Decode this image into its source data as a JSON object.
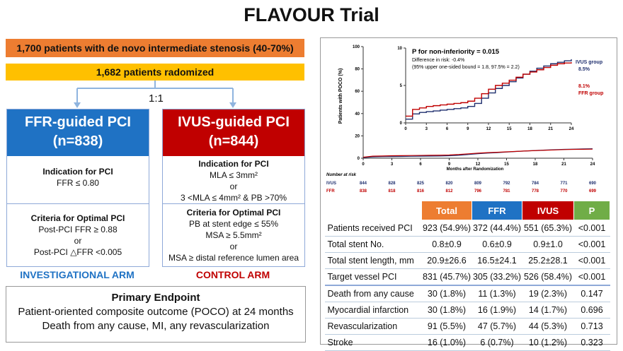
{
  "title": "FLAVOUR Trial",
  "enrolled": "1,700 patients with de novo intermediate stenosis (40-70%)",
  "randomized": "1,682 patients radomized",
  "ratio": "1:1",
  "colors": {
    "orange": "#ED7D31",
    "yellow": "#FFC000",
    "ffr_blue": "#1F72C4",
    "ivus_red": "#C00000",
    "green": "#70AD47",
    "navy": "#1F2F6E"
  },
  "ffr_arm": {
    "title_line1": "FFR-guided PCI",
    "title_line2": "(n=838)",
    "indication_head": "Indication for PCI",
    "indication_line1": "FFR ≤ 0.80",
    "optimal_head": "Criteria for Optimal PCI",
    "optimal_line1": "Post-PCI FFR ≥ 0.88",
    "optimal_line2": "or",
    "optimal_line3": "Post-PCI △FFR <0.005",
    "label": "INVESTIGATIONAL ARM"
  },
  "ivus_arm": {
    "title_line1": "IVUS-guided PCI",
    "title_line2": "(n=844)",
    "indication_head": "Indication for PCI",
    "indication_line1": "MLA ≤ 3mm²",
    "indication_line2": "or",
    "indication_line3": "3 <MLA ≤ 4mm² & PB >70%",
    "optimal_head": "Criteria for Optimal PCI",
    "optimal_line1": "PB at stent edge ≤ 55%",
    "optimal_line2": "MSA ≥ 5.5mm²",
    "optimal_line3": "or",
    "optimal_line4": "MSA ≥ distal reference lumen area",
    "label": "CONTROL ARM"
  },
  "endpoint": {
    "head": "Primary Endpoint",
    "line1": "Patient-oriented composite outcome (POCO) at 24 months",
    "line2": "Death from any cause, MI, any revascularization"
  },
  "chart_data": {
    "type": "line",
    "ylabel": "Patients with POCO (%)",
    "xlabel": "Months after Randomization",
    "ylim": [
      0,
      100
    ],
    "xlim": [
      0,
      24
    ],
    "yticks": [
      "0",
      "20",
      "40",
      "60",
      "80",
      "100"
    ],
    "xticks": [
      "0",
      "3",
      "6",
      "9",
      "12",
      "15",
      "18",
      "21",
      "24"
    ],
    "inset": {
      "ylim": [
        0,
        10
      ],
      "xlim": [
        0,
        24
      ],
      "yticks": [
        "0",
        "5",
        "10"
      ],
      "xticks": [
        "0",
        "3",
        "6",
        "9",
        "12",
        "15",
        "18",
        "21",
        "24"
      ],
      "annotation_head": "P for non-inferiority = 0.015",
      "annotation_line1": "Difference in risk: -0.4%",
      "annotation_line2": "(95% upper one-sided bound = 1.8, 97.5% = 2.2)",
      "ivus_label": "IVUS group",
      "ivus_value": "8.5%",
      "ffr_value": "8.1%",
      "ffr_label": "FFR group"
    },
    "x": [
      0,
      1,
      2,
      3,
      4,
      5,
      6,
      7,
      8,
      9,
      10,
      11,
      12,
      13,
      14,
      15,
      16,
      17,
      18,
      19,
      20,
      21,
      22,
      23,
      24
    ],
    "series": [
      {
        "name": "IVUS group",
        "color": "#1F2F6E",
        "values": [
          0.5,
          1.2,
          1.4,
          1.5,
          1.6,
          1.7,
          1.8,
          1.9,
          2.0,
          2.2,
          2.6,
          3.3,
          4.0,
          4.6,
          5.0,
          5.5,
          6.0,
          6.5,
          6.9,
          7.3,
          7.6,
          7.9,
          8.1,
          8.3,
          8.5
        ]
      },
      {
        "name": "FFR group",
        "color": "#C00000",
        "values": [
          0.9,
          1.8,
          2.0,
          2.2,
          2.3,
          2.4,
          2.5,
          2.6,
          2.7,
          2.9,
          3.3,
          3.9,
          4.5,
          5.0,
          5.3,
          5.7,
          6.1,
          6.5,
          6.8,
          7.1,
          7.4,
          7.7,
          7.9,
          8.0,
          8.1
        ]
      }
    ],
    "risk_table": {
      "head": "Number at risk",
      "rows": [
        {
          "label": "IVUS",
          "values": [
            "844",
            "828",
            "825",
            "820",
            "809",
            "792",
            "784",
            "771",
            "690"
          ]
        },
        {
          "label": "FFR",
          "values": [
            "838",
            "818",
            "816",
            "812",
            "796",
            "781",
            "778",
            "770",
            "699"
          ]
        }
      ]
    }
  },
  "results_table": {
    "headers": [
      "",
      "Total",
      "FFR",
      "IVUS",
      "P"
    ],
    "rows": [
      [
        "Patients received PCI",
        "923 (54.9%)",
        "372 (44.4%)",
        "551 (65.3%)",
        "<0.001"
      ],
      [
        "Total stent No.",
        "0.8±0.9",
        "0.6±0.9",
        "0.9±1.0",
        "<0.001"
      ],
      [
        "Total stent length, mm",
        "20.9±26.6",
        "16.5±24.1",
        "25.2±28.1",
        "<0.001"
      ],
      [
        "Target vessel PCI",
        "831 (45.7%)",
        "305 (33.2%)",
        "526 (58.4%)",
        "<0.001"
      ],
      [
        "Death from any cause",
        "30 (1.8%)",
        "11 (1.3%)",
        "19 (2.3%)",
        "0.147"
      ],
      [
        "Myocardial infarction",
        "30 (1.8%)",
        "16 (1.9%)",
        "14 (1.7%)",
        "0.696"
      ],
      [
        "Revascularization",
        "91 (5.5%)",
        "47 (5.7%)",
        "44 (5.3%)",
        "0.713"
      ],
      [
        "Stroke",
        "16 (1.0%)",
        "6 (0.7%)",
        "10 (1.2%)",
        "0.323"
      ]
    ]
  }
}
